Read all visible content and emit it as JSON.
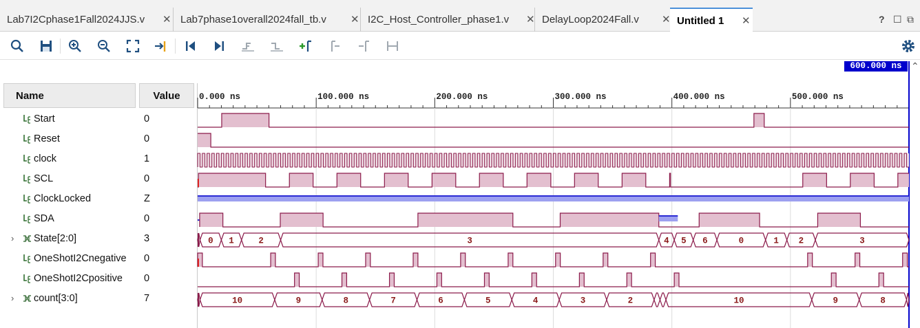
{
  "tabs": [
    {
      "label": "Lab7I2Cphase1Fall2024JJS.v",
      "active": false
    },
    {
      "label": "Lab7phase1overall2024fall_tb.v",
      "active": false
    },
    {
      "label": "I2C_Host_Controller_phase1.v",
      "active": false
    },
    {
      "label": "DelayLoop2024Fall.v",
      "active": false
    },
    {
      "label": "Untitled 1",
      "active": true
    }
  ],
  "window_controls": {
    "help": "?",
    "restore": "☐",
    "float": "⧉"
  },
  "toolbar": {
    "icons": [
      "search-icon",
      "save-icon",
      "zoom-in-icon",
      "zoom-out-icon",
      "zoom-fit-icon",
      "go-to-cursor-icon",
      "go-to-start-icon",
      "go-to-end-icon",
      "previous-transition-icon",
      "next-transition-icon",
      "add-marker-icon",
      "previous-marker-icon",
      "next-marker-icon",
      "swap-cursors-icon"
    ],
    "settings_icon": "gear-icon"
  },
  "columns": {
    "name": "Name",
    "value": "Value"
  },
  "cursor": {
    "label": "600.000 ns",
    "time_ns": 600
  },
  "timeline": {
    "tick_labels": [
      "0.000 ns",
      "100.000 ns",
      "200.000 ns",
      "300.000 ns",
      "400.000 ns",
      "500.000 ns"
    ],
    "tick_values_ns": [
      0,
      100,
      200,
      300,
      400,
      500
    ],
    "end_ns": 600
  },
  "signals": [
    {
      "name": "Start",
      "value": "0",
      "kind": "bit",
      "expandable": false
    },
    {
      "name": "Reset",
      "value": "0",
      "kind": "bit",
      "expandable": false
    },
    {
      "name": "clock",
      "value": "1",
      "kind": "bit",
      "expandable": false
    },
    {
      "name": "SCL",
      "value": "0",
      "kind": "bit",
      "expandable": false
    },
    {
      "name": "ClockLocked",
      "value": "Z",
      "kind": "bit",
      "expandable": false
    },
    {
      "name": "SDA",
      "value": "0",
      "kind": "bit",
      "expandable": false
    },
    {
      "name": "State[2:0]",
      "value": "3",
      "kind": "bus",
      "expandable": true
    },
    {
      "name": "OneShotI2Cnegative",
      "value": "0",
      "kind": "bit",
      "expandable": false
    },
    {
      "name": "OneShotI2Cpositive",
      "value": "0",
      "kind": "bit",
      "expandable": false
    },
    {
      "name": "count[3:0]",
      "value": "7",
      "kind": "bus",
      "expandable": true
    }
  ],
  "colors": {
    "wave_fill": "#e3bfcf",
    "wave_line": "#8b1a4a",
    "z_line": "#2b2bd4",
    "z_fill": "#9da0f0",
    "bus_text": "#8b1a1a",
    "cursor": "#0000cc",
    "grid": "#dcdcdc"
  },
  "waves": {
    "Start": {
      "initial": 0,
      "transitions_ns": [
        20.3,
        60.2,
        469.2,
        477.9
      ]
    },
    "Reset": {
      "initial": 1,
      "transitions_ns": [
        11.1
      ]
    },
    "clock": {
      "initial": 0,
      "period_ns": 4.0
    },
    "SCL": {
      "initial": 0,
      "transitions_ns": [
        0.7,
        57.3,
        77.4,
        97.4,
        117.5,
        137.5,
        157.6,
        177.6,
        197.7,
        217.7,
        237.7,
        257.8,
        277.8,
        297.9,
        317.9,
        337.9,
        358.0,
        378.0,
        398.1,
        399.0,
        398.9,
        510.4,
        530.5,
        550.5,
        570.6,
        590.6
      ]
    },
    "ClockLocked": {
      "state": "Z"
    },
    "SDA": {
      "initial": "Z",
      "transitions_ns": [
        1.7,
        21.3,
        69.7,
        105.8,
        185.8,
        265.9,
        315.8,
        399.8,
        431.1,
        441.3,
        528.5,
        546.3,
        582.1
      ]
    },
    "State": {
      "segments": [
        [
          0,
          2,
          ""
        ],
        [
          2,
          20,
          "0"
        ],
        [
          20,
          37,
          "1"
        ],
        [
          37,
          70,
          "2"
        ],
        [
          70,
          389,
          "3"
        ],
        [
          389,
          402,
          "4"
        ],
        [
          402,
          418,
          "5"
        ],
        [
          418,
          438,
          "6"
        ],
        [
          438,
          479,
          "0"
        ],
        [
          479,
          497,
          "1"
        ],
        [
          497,
          521,
          "2"
        ],
        [
          521,
          600,
          "3"
        ]
      ]
    },
    "OneShotI2Cnegative": {
      "initial": 0,
      "pulses_ns": [
        0,
        61.6,
        101.7,
        141.7,
        181.8,
        221.8,
        261.9,
        301.9,
        342.0,
        382.0,
        514.5,
        554.5,
        594.6
      ]
    },
    "OneShotI2Cpositive": {
      "initial": 0,
      "pulses_ns": [
        81.7,
        121.7,
        161.8,
        201.8,
        241.9,
        281.9,
        322.0,
        362.0,
        402.0,
        534.5,
        574.6
      ]
    },
    "count": {
      "segments": [
        [
          0,
          2,
          ""
        ],
        [
          2,
          65,
          "10"
        ],
        [
          65,
          105,
          "9"
        ],
        [
          105,
          145,
          "8"
        ],
        [
          145,
          185,
          "7"
        ],
        [
          185,
          225,
          "6"
        ],
        [
          225,
          265,
          "5"
        ],
        [
          265,
          305,
          "4"
        ],
        [
          305,
          345,
          "3"
        ],
        [
          345,
          385,
          "2"
        ],
        [
          385,
          390,
          ""
        ],
        [
          390,
          395,
          ""
        ],
        [
          395,
          518,
          "10"
        ],
        [
          518,
          558,
          "9"
        ],
        [
          558,
          598,
          "8"
        ],
        [
          598,
          600,
          ""
        ]
      ]
    }
  }
}
